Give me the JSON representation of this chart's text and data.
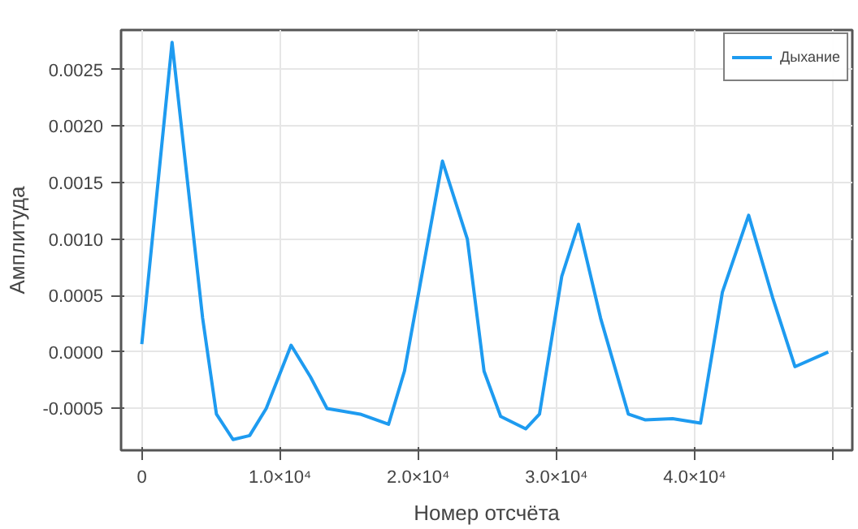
{
  "chart_data": {
    "type": "line",
    "xlabel": "Номер отсчёта",
    "ylabel": "Амплитуда",
    "xlim": [
      -1500,
      51400
    ],
    "ylim": [
      -0.00087,
      0.00285
    ],
    "xticks": [
      0,
      {
        "value": 10000,
        "label": "1.0×10⁴"
      },
      {
        "value": 20000,
        "label": "2.0×10⁴"
      },
      {
        "value": 30000,
        "label": "3.0×10⁴"
      },
      {
        "value": 40000,
        "label": "4.0×10⁴"
      },
      {
        "value": 50000,
        "label": null
      }
    ],
    "yticks": [
      {
        "value": -0.0005,
        "label": "-0.0005"
      },
      {
        "value": 0,
        "label": "0.0000"
      },
      {
        "value": 0.0005,
        "label": "0.0005"
      },
      {
        "value": 0.001,
        "label": "0.0010"
      },
      {
        "value": 0.0015,
        "label": "0.0015"
      },
      {
        "value": 0.002,
        "label": "0.0020"
      },
      {
        "value": 0.0025,
        "label": "0.0025"
      }
    ],
    "grid": true,
    "legend": "top right",
    "marker": "none",
    "line_style": "solid",
    "x": [
      0,
      2190,
      4400,
      5400,
      6600,
      7800,
      9000,
      10800,
      12200,
      13400,
      15800,
      17850,
      19000,
      21750,
      23550,
      24760,
      25960,
      27770,
      28770,
      30380,
      31590,
      33190,
      35200,
      36400,
      38400,
      40420,
      42000,
      43900,
      45640,
      47250,
      49660
    ],
    "series": [
      {
        "name": "Дыхание",
        "color": "#1e9bf0",
        "values": [
          7e-05,
          0.00274,
          0.0003,
          -0.00055,
          -0.000775,
          -0.00074,
          -0.0005,
          6e-05,
          -0.00022,
          -0.0005,
          -0.00055,
          -0.00064,
          -0.00017,
          0.00169,
          0.001,
          -0.00017,
          -0.00057,
          -0.00068,
          -0.00055,
          0.00067,
          0.00113,
          0.0003,
          -0.00055,
          -0.0006,
          -0.00059,
          -0.00063,
          0.00053,
          0.00121,
          0.00048,
          -0.00013,
          0.0
        ]
      }
    ]
  }
}
